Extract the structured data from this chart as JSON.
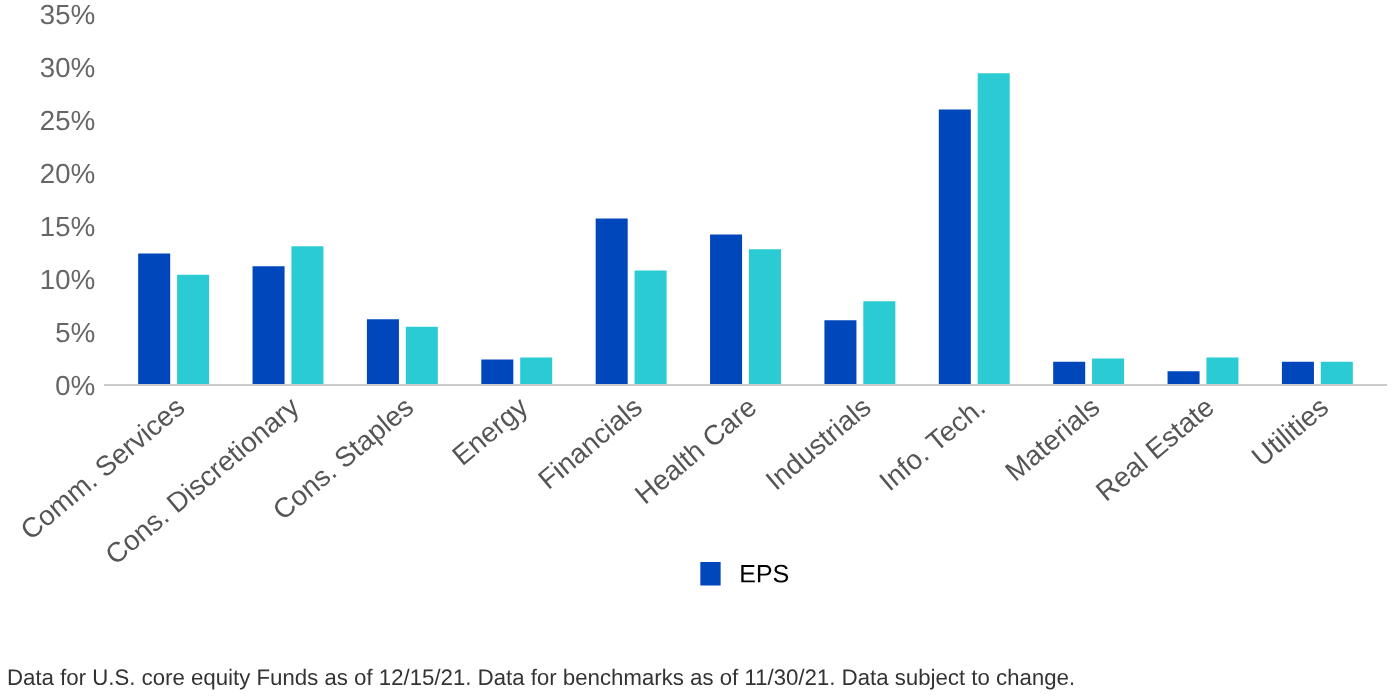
{
  "chart_data": {
    "type": "bar",
    "categories": [
      "Comm. Services",
      "Cons. Discretionary",
      "Cons. Staples",
      "Energy",
      "Financials",
      "Health Care",
      "Industrials",
      "Info. Tech.",
      "Materials",
      "Real Estate",
      "Utilities"
    ],
    "series": [
      {
        "name": "EPS",
        "color": "#0047bb",
        "values": [
          12.4,
          11.2,
          6.2,
          2.4,
          15.7,
          14.2,
          6.1,
          26.0,
          2.2,
          1.3,
          2.2
        ]
      },
      {
        "color": "#2bcbd3",
        "values": [
          10.4,
          13.1,
          5.5,
          2.6,
          10.8,
          12.8,
          7.9,
          29.4,
          2.5,
          2.6,
          2.2
        ]
      }
    ],
    "ylim": [
      0,
      35
    ],
    "yticks": [
      {
        "value": 0,
        "label": "0%"
      },
      {
        "value": 5,
        "label": "5%"
      },
      {
        "value": 10,
        "label": "10%"
      },
      {
        "value": 15,
        "label": "15%"
      },
      {
        "value": 20,
        "label": "20%"
      },
      {
        "value": 25,
        "label": "25%"
      },
      {
        "value": 30,
        "label": "30%"
      },
      {
        "value": 35,
        "label": "35%"
      }
    ],
    "grid": false,
    "legend": "bottom",
    "annotations": [
      "Data for U.S. core equity Funds as of 12/15/21. Data for benchmarks as of 11/30/21. Data subject to change."
    ]
  }
}
